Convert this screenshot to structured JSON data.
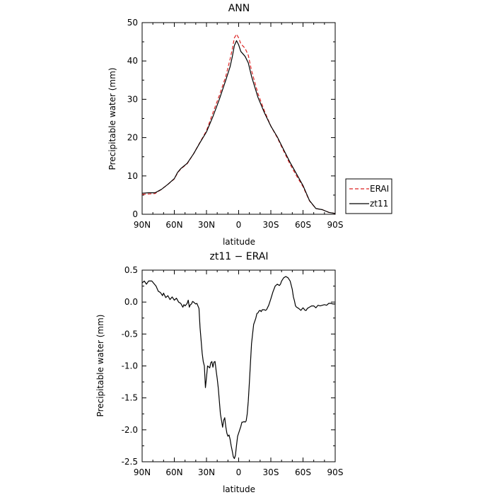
{
  "chart_data": [
    {
      "type": "line",
      "title": "ANN",
      "xlabel": "latitude",
      "ylabel": "Precipitable water (mm)",
      "xlim": [
        90,
        -90
      ],
      "ylim": [
        0,
        50
      ],
      "x_ticks": [
        90,
        60,
        30,
        0,
        -30,
        -60,
        -90
      ],
      "x_tick_labels": [
        "90N",
        "60N",
        "30N",
        "0",
        "30S",
        "60S",
        "90S"
      ],
      "y_ticks": [
        0,
        10,
        20,
        30,
        40,
        50
      ],
      "y_tick_labels": [
        "0",
        "10",
        "20",
        "30",
        "40",
        "50"
      ],
      "legend_position": "outside right",
      "series": [
        {
          "name": "ERAI",
          "color": "#dd2222",
          "dash": "dashed",
          "points": [
            [
              90,
              5.2
            ],
            [
              84,
              5.3
            ],
            [
              78,
              5.4
            ],
            [
              72,
              6.5
            ],
            [
              66,
              7.8
            ],
            [
              60,
              9.2
            ],
            [
              57,
              10.8
            ],
            [
              54,
              11.8
            ],
            [
              48,
              13.2
            ],
            [
              42,
              15.8
            ],
            [
              36,
              18.8
            ],
            [
              30,
              21.8
            ],
            [
              24,
              26.5
            ],
            [
              18,
              31.0
            ],
            [
              12,
              36.0
            ],
            [
              8,
              40.5
            ],
            [
              6,
              43.0
            ],
            [
              4,
              46.0
            ],
            [
              2,
              47.0
            ],
            [
              0,
              46.0
            ],
            [
              -2,
              44.5
            ],
            [
              -6,
              43.3
            ],
            [
              -9,
              41.5
            ],
            [
              -12,
              37.5
            ],
            [
              -18,
              31.5
            ],
            [
              -24,
              27.0
            ],
            [
              -30,
              23.0
            ],
            [
              -36,
              20.0
            ],
            [
              -42,
              16.5
            ],
            [
              -48,
              13.0
            ],
            [
              -54,
              10.0
            ],
            [
              -60,
              7.2
            ],
            [
              -66,
              3.5
            ],
            [
              -72,
              1.5
            ],
            [
              -78,
              1.2
            ],
            [
              -84,
              0.5
            ],
            [
              -90,
              0.2
            ]
          ]
        },
        {
          "name": "zt11",
          "color": "#000000",
          "dash": "solid",
          "points": [
            [
              90,
              5.5
            ],
            [
              84,
              5.6
            ],
            [
              78,
              5.6
            ],
            [
              72,
              6.5
            ],
            [
              66,
              7.8
            ],
            [
              60,
              9.3
            ],
            [
              57,
              10.9
            ],
            [
              54,
              11.9
            ],
            [
              48,
              13.3
            ],
            [
              42,
              15.8
            ],
            [
              36,
              18.7
            ],
            [
              30,
              21.5
            ],
            [
              24,
              25.5
            ],
            [
              18,
              30.0
            ],
            [
              12,
              35.0
            ],
            [
              8,
              38.5
            ],
            [
              6,
              41.0
            ],
            [
              4,
              44.0
            ],
            [
              2,
              45.3
            ],
            [
              0,
              44.2
            ],
            [
              -2,
              42.5
            ],
            [
              -6,
              41.2
            ],
            [
              -9,
              39.5
            ],
            [
              -12,
              36.0
            ],
            [
              -18,
              30.5
            ],
            [
              -24,
              26.5
            ],
            [
              -30,
              23.0
            ],
            [
              -36,
              20.2
            ],
            [
              -42,
              16.8
            ],
            [
              -48,
              13.5
            ],
            [
              -54,
              10.5
            ],
            [
              -60,
              7.5
            ],
            [
              -66,
              3.6
            ],
            [
              -72,
              1.5
            ],
            [
              -78,
              1.2
            ],
            [
              -84,
              0.5
            ],
            [
              -90,
              0.2
            ]
          ]
        }
      ]
    },
    {
      "type": "line",
      "title": "zt11 − ERAI",
      "xlabel": "latitude",
      "ylabel": "Precipitable water (mm)",
      "xlim": [
        90,
        -90
      ],
      "ylim": [
        -2.5,
        0.5
      ],
      "x_ticks": [
        90,
        60,
        30,
        0,
        -30,
        -60,
        -90
      ],
      "x_tick_labels": [
        "90N",
        "60N",
        "30N",
        "0",
        "30S",
        "60S",
        "90S"
      ],
      "y_ticks": [
        -2.5,
        -2.0,
        -1.5,
        -1.0,
        -0.5,
        0.0,
        0.5
      ],
      "y_tick_labels": [
        "-2.5",
        "-2.0",
        "-1.5",
        "-1.0",
        "-0.5",
        "0.0",
        "0.5"
      ],
      "series": [
        {
          "name": "",
          "color": "#000000",
          "dash": "solid",
          "points": [
            [
              90,
              0.3
            ],
            [
              88,
              0.33
            ],
            [
              86,
              0.28
            ],
            [
              84,
              0.33
            ],
            [
              81,
              0.33
            ],
            [
              79,
              0.29
            ],
            [
              77,
              0.25
            ],
            [
              75,
              0.17
            ],
            [
              73,
              0.15
            ],
            [
              71,
              0.1
            ],
            [
              70,
              0.14
            ],
            [
              68,
              0.07
            ],
            [
              66,
              0.1
            ],
            [
              64,
              0.04
            ],
            [
              62,
              0.08
            ],
            [
              60,
              0.03
            ],
            [
              58,
              0.06
            ],
            [
              56,
              0.0
            ],
            [
              54,
              -0.02
            ],
            [
              52,
              -0.08
            ],
            [
              51,
              -0.04
            ],
            [
              50,
              -0.06
            ],
            [
              48,
              -0.02
            ],
            [
              47,
              0.03
            ],
            [
              46,
              -0.08
            ],
            [
              45,
              -0.04
            ],
            [
              44,
              -0.03
            ],
            [
              43,
              0.01
            ],
            [
              42,
              0.0
            ],
            [
              40,
              -0.03
            ],
            [
              39,
              -0.02
            ],
            [
              37,
              -0.1
            ],
            [
              36,
              -0.4
            ],
            [
              34,
              -0.8
            ],
            [
              33,
              -0.93
            ],
            [
              32,
              -1.0
            ],
            [
              31,
              -1.34
            ],
            [
              30,
              -1.18
            ],
            [
              29,
              -1.0
            ],
            [
              27,
              -1.03
            ],
            [
              26,
              -0.95
            ],
            [
              25,
              -0.93
            ],
            [
              24,
              -1.02
            ],
            [
              23,
              -0.94
            ],
            [
              22,
              -0.93
            ],
            [
              21,
              -1.07
            ],
            [
              20,
              -1.2
            ],
            [
              19,
              -1.35
            ],
            [
              18,
              -1.55
            ],
            [
              17,
              -1.75
            ],
            [
              16,
              -1.85
            ],
            [
              15,
              -1.96
            ],
            [
              14,
              -1.85
            ],
            [
              13,
              -1.81
            ],
            [
              12,
              -1.95
            ],
            [
              11,
              -2.05
            ],
            [
              10,
              -2.1
            ],
            [
              9,
              -2.08
            ],
            [
              8,
              -2.15
            ],
            [
              7,
              -2.25
            ],
            [
              6,
              -2.33
            ],
            [
              5,
              -2.42
            ],
            [
              4,
              -2.45
            ],
            [
              3,
              -2.4
            ],
            [
              2,
              -2.24
            ],
            [
              1,
              -2.1
            ],
            [
              0,
              -2.05
            ],
            [
              -1,
              -2.0
            ],
            [
              -2,
              -1.95
            ],
            [
              -3,
              -1.88
            ],
            [
              -4,
              -1.88
            ],
            [
              -5,
              -1.87
            ],
            [
              -6,
              -1.88
            ],
            [
              -7,
              -1.86
            ],
            [
              -8,
              -1.75
            ],
            [
              -9,
              -1.55
            ],
            [
              -10,
              -1.25
            ],
            [
              -11,
              -0.95
            ],
            [
              -12,
              -0.65
            ],
            [
              -13,
              -0.5
            ],
            [
              -14,
              -0.35
            ],
            [
              -15,
              -0.3
            ],
            [
              -16,
              -0.25
            ],
            [
              -17,
              -0.18
            ],
            [
              -18,
              -0.17
            ],
            [
              -19,
              -0.14
            ],
            [
              -20,
              -0.13
            ],
            [
              -21,
              -0.15
            ],
            [
              -22,
              -0.12
            ],
            [
              -23,
              -0.12
            ],
            [
              -24,
              -0.12
            ],
            [
              -25,
              -0.13
            ],
            [
              -26,
              -0.12
            ],
            [
              -28,
              -0.05
            ],
            [
              -30,
              0.05
            ],
            [
              -32,
              0.16
            ],
            [
              -34,
              0.25
            ],
            [
              -36,
              0.28
            ],
            [
              -38,
              0.26
            ],
            [
              -39,
              0.28
            ],
            [
              -40,
              0.33
            ],
            [
              -42,
              0.38
            ],
            [
              -44,
              0.4
            ],
            [
              -46,
              0.38
            ],
            [
              -48,
              0.33
            ],
            [
              -50,
              0.2
            ],
            [
              -51,
              0.08
            ],
            [
              -52,
              0.02
            ],
            [
              -53,
              -0.06
            ],
            [
              -54,
              -0.08
            ],
            [
              -56,
              -0.1
            ],
            [
              -58,
              -0.13
            ],
            [
              -60,
              -0.09
            ],
            [
              -62,
              -0.13
            ],
            [
              -63,
              -0.13
            ],
            [
              -64,
              -0.1
            ],
            [
              -66,
              -0.08
            ],
            [
              -68,
              -0.06
            ],
            [
              -70,
              -0.06
            ],
            [
              -72,
              -0.09
            ],
            [
              -74,
              -0.05
            ],
            [
              -76,
              -0.06
            ],
            [
              -78,
              -0.05
            ],
            [
              -80,
              -0.04
            ],
            [
              -82,
              -0.05
            ],
            [
              -84,
              -0.02
            ],
            [
              -86,
              -0.02
            ],
            [
              -88,
              -0.03
            ],
            [
              -90,
              -0.03
            ]
          ]
        }
      ]
    }
  ]
}
